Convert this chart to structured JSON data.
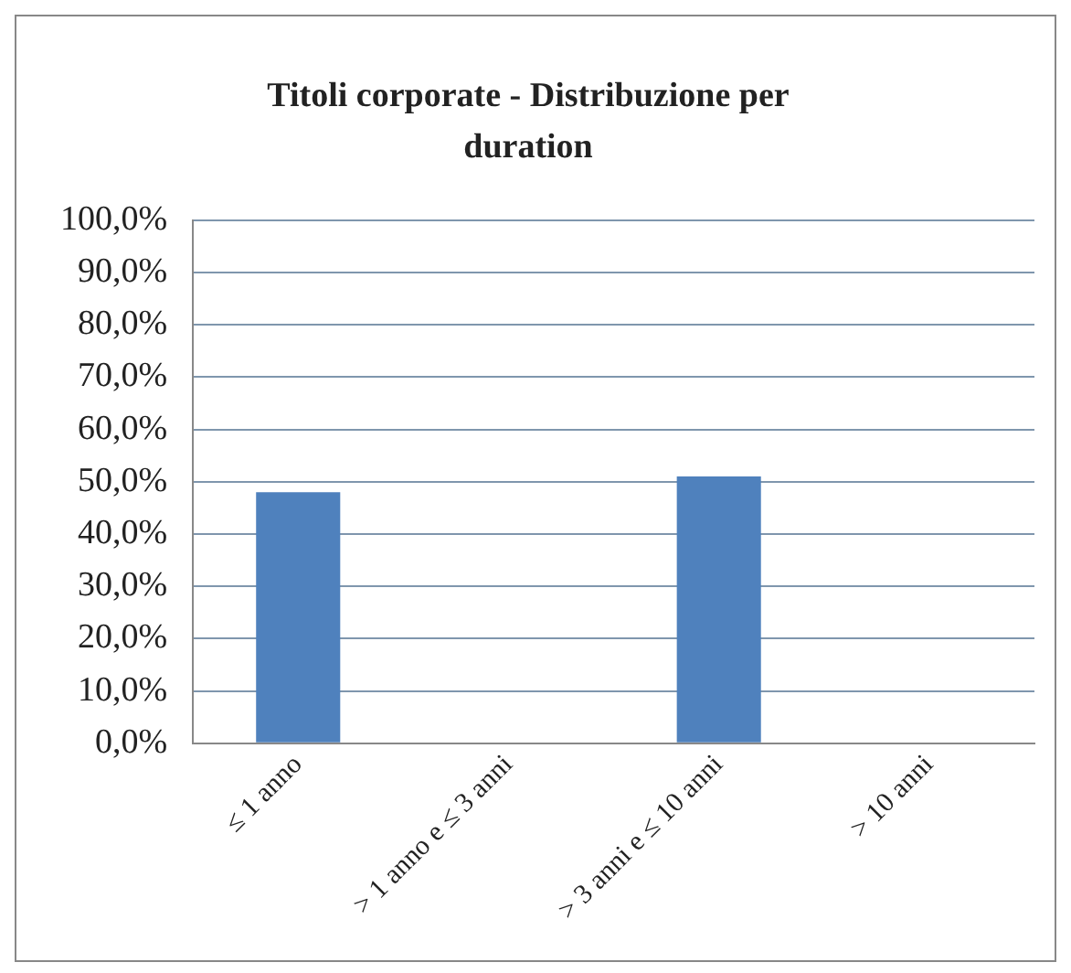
{
  "chart_data": {
    "type": "bar",
    "title": "Titoli corporate - Distribuzione per duration",
    "categories": [
      "≤ 1 anno",
      "> 1 anno e ≤ 3 anni",
      "> 3 anni e ≤ 10 anni",
      "> 10 anni"
    ],
    "values": [
      48,
      0,
      51,
      0
    ],
    "color": "#4f81bd",
    "ylim": [
      0,
      100
    ],
    "yticks": [
      {
        "value": 0,
        "label": "0,0%"
      },
      {
        "value": 10,
        "label": "10,0%"
      },
      {
        "value": 20,
        "label": "20,0%"
      },
      {
        "value": 30,
        "label": "30,0%"
      },
      {
        "value": 40,
        "label": "40,0%"
      },
      {
        "value": 50,
        "label": "50,0%"
      },
      {
        "value": 60,
        "label": "60,0%"
      },
      {
        "value": 70,
        "label": "70,0%"
      },
      {
        "value": 80,
        "label": "80,0%"
      },
      {
        "value": 90,
        "label": "90,0%"
      },
      {
        "value": 100,
        "label": "100,0%"
      }
    ],
    "grid": "y",
    "legend": false
  }
}
